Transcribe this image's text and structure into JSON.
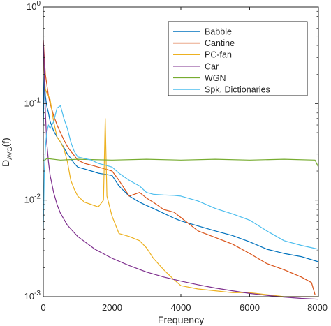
{
  "chart_data": {
    "type": "line",
    "title": "",
    "xlabel": "Frequency",
    "ylabel": "D_AVG(f)",
    "ylabel_main": "D",
    "ylabel_sub": "AVG",
    "ylabel_tail": "(f)",
    "xlim": [
      0,
      8000
    ],
    "ylim": [
      0.001,
      1
    ],
    "yscale": "log",
    "grid": false,
    "legend_position": "top-right",
    "x_ticks": [
      {
        "value": 0,
        "label": "0"
      },
      {
        "value": 2000,
        "label": "2000"
      },
      {
        "value": 4000,
        "label": "4000"
      },
      {
        "value": 6000,
        "label": "6000"
      },
      {
        "value": 8000,
        "label": "8000"
      }
    ],
    "y_ticks": [
      {
        "value": 1,
        "base": "10",
        "exp": "0"
      },
      {
        "value": 0.1,
        "base": "10",
        "exp": "-1"
      },
      {
        "value": 0.01,
        "base": "10",
        "exp": "-2"
      },
      {
        "value": 0.001,
        "base": "10",
        "exp": "-3"
      }
    ],
    "series": [
      {
        "name": "Babble",
        "color": "#0072bd",
        "x": [
          0,
          30,
          60,
          100,
          150,
          200,
          300,
          400,
          500,
          600,
          700,
          800,
          900,
          1000,
          1200,
          1400,
          1600,
          1800,
          2000,
          2200,
          2500,
          2800,
          3000,
          3200,
          3500,
          3800,
          4000,
          4500,
          5000,
          5500,
          6000,
          6500,
          7000,
          7500,
          8000
        ],
        "y": [
          0.06,
          0.2,
          0.12,
          0.095,
          0.08,
          0.065,
          0.052,
          0.045,
          0.04,
          0.035,
          0.03,
          0.027,
          0.024,
          0.022,
          0.021,
          0.02,
          0.019,
          0.0185,
          0.018,
          0.014,
          0.011,
          0.0095,
          0.0088,
          0.0082,
          0.0073,
          0.0065,
          0.0061,
          0.0054,
          0.0048,
          0.0043,
          0.0037,
          0.0031,
          0.0028,
          0.0026,
          0.0023
        ]
      },
      {
        "name": "Cantine",
        "color": "#d95319",
        "x": [
          0,
          30,
          60,
          100,
          150,
          200,
          300,
          400,
          500,
          600,
          700,
          800,
          900,
          1000,
          1200,
          1400,
          1600,
          1800,
          2000,
          2200,
          2500,
          2800,
          3000,
          3200,
          3500,
          3800,
          4000,
          4500,
          5000,
          5500,
          6000,
          6500,
          7000,
          7500,
          7800,
          7900
        ],
        "y": [
          0.45,
          0.3,
          0.2,
          0.16,
          0.12,
          0.1,
          0.075,
          0.06,
          0.05,
          0.042,
          0.036,
          0.032,
          0.029,
          0.026,
          0.024,
          0.023,
          0.022,
          0.021,
          0.02,
          0.016,
          0.011,
          0.012,
          0.0105,
          0.0095,
          0.008,
          0.0075,
          0.0066,
          0.0048,
          0.0041,
          0.0035,
          0.0028,
          0.0022,
          0.0019,
          0.0016,
          0.0014,
          0.00105
        ]
      },
      {
        "name": "PC-fan",
        "color": "#edb120",
        "x": [
          0,
          30,
          60,
          100,
          150,
          200,
          300,
          400,
          500,
          600,
          700,
          800,
          900,
          1000,
          1200,
          1400,
          1600,
          1750,
          1800,
          1850,
          1950,
          2000,
          2200,
          2500,
          2800,
          3000,
          3200,
          3500,
          3800,
          4000,
          4500,
          5000,
          5500,
          6000,
          6500,
          7000,
          7500,
          8000
        ],
        "y": [
          0.35,
          0.2,
          0.14,
          0.13,
          0.12,
          0.11,
          0.065,
          0.045,
          0.04,
          0.034,
          0.025,
          0.016,
          0.013,
          0.011,
          0.0095,
          0.009,
          0.0085,
          0.01,
          0.07,
          0.011,
          0.008,
          0.0068,
          0.0045,
          0.0042,
          0.0038,
          0.0032,
          0.0025,
          0.0019,
          0.0015,
          0.0013,
          0.0012,
          0.00115,
          0.0011,
          0.0011,
          0.00105,
          0.001,
          0.001,
          0.001
        ]
      },
      {
        "name": "Car",
        "color": "#7e2f8e",
        "x": [
          0,
          20,
          40,
          60,
          100,
          150,
          200,
          300,
          400,
          500,
          700,
          1000,
          1500,
          2000,
          2500,
          3000,
          3500,
          4000,
          4500,
          5000,
          5500,
          6000,
          6500,
          7000,
          7500,
          8000
        ],
        "y": [
          0.45,
          0.3,
          0.15,
          0.08,
          0.04,
          0.025,
          0.018,
          0.012,
          0.009,
          0.0073,
          0.0055,
          0.0042,
          0.0031,
          0.0025,
          0.0021,
          0.0018,
          0.0016,
          0.00145,
          0.00133,
          0.00123,
          0.00115,
          0.00108,
          0.00103,
          0.00099,
          0.00096,
          0.00094
        ]
      },
      {
        "name": "WGN",
        "color": "#77ac30",
        "x": [
          0,
          50,
          100,
          500,
          1000,
          2000,
          3000,
          4000,
          5000,
          6000,
          7000,
          7900,
          8000
        ],
        "y": [
          0.026,
          0.026,
          0.027,
          0.026,
          0.0265,
          0.026,
          0.0265,
          0.026,
          0.0265,
          0.026,
          0.0265,
          0.026,
          0.022
        ]
      },
      {
        "name": "Spk. Dictionaries",
        "color": "#4dbeee",
        "x": [
          0,
          30,
          60,
          100,
          150,
          200,
          300,
          400,
          500,
          600,
          700,
          800,
          900,
          1000,
          1200,
          1400,
          1600,
          1800,
          2000,
          2200,
          2500,
          2800,
          3000,
          3200,
          3500,
          3800,
          4000,
          4500,
          5000,
          5500,
          6000,
          6500,
          7000,
          7500,
          8000
        ],
        "y": [
          0.005,
          0.02,
          0.035,
          0.05,
          0.06,
          0.055,
          0.065,
          0.09,
          0.095,
          0.07,
          0.055,
          0.04,
          0.032,
          0.028,
          0.027,
          0.026,
          0.024,
          0.023,
          0.022,
          0.019,
          0.016,
          0.014,
          0.012,
          0.0115,
          0.0113,
          0.0112,
          0.011,
          0.0098,
          0.0082,
          0.0072,
          0.0062,
          0.0048,
          0.0038,
          0.0034,
          0.0031
        ]
      }
    ]
  }
}
